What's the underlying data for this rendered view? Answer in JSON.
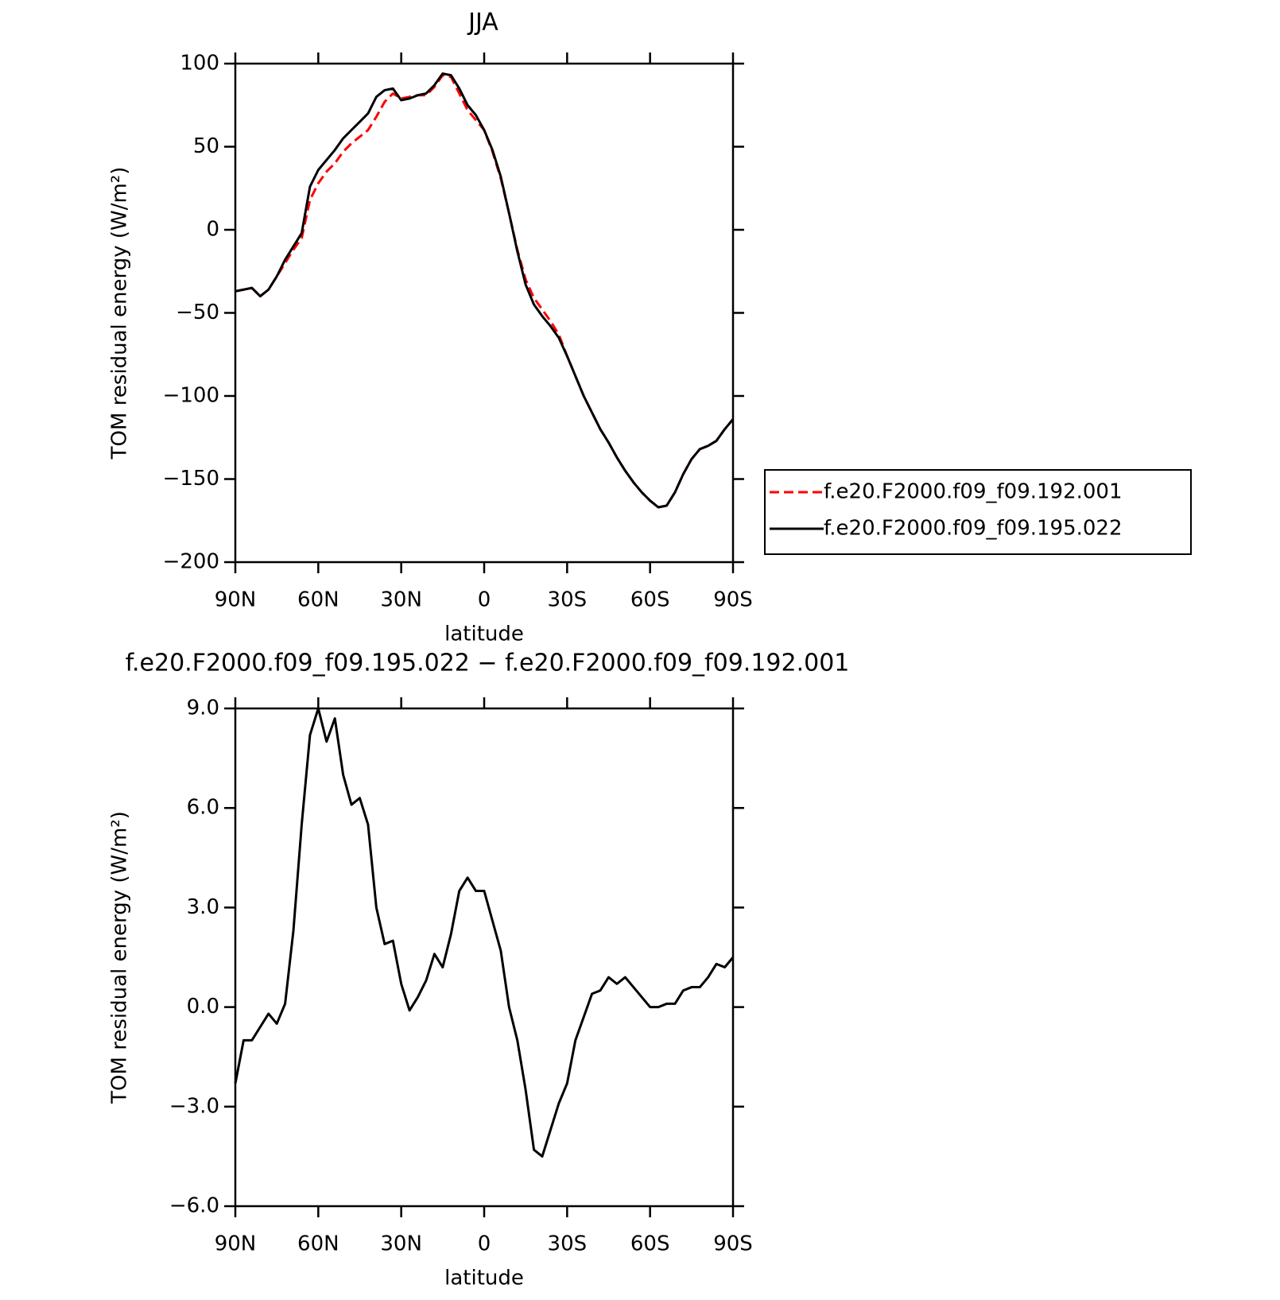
{
  "chart_data": [
    {
      "type": "line",
      "title": "JJA",
      "xlabel": "latitude",
      "ylabel": "TOM residual energy (W/m²)",
      "x": [
        90,
        87,
        84,
        81,
        78,
        75,
        72,
        69,
        66,
        63,
        60,
        57,
        54,
        51,
        48,
        45,
        42,
        39,
        36,
        33,
        30,
        27,
        24,
        21,
        18,
        15,
        12,
        9,
        6,
        3,
        0,
        -3,
        -6,
        -9,
        -12,
        -15,
        -18,
        -21,
        -24,
        -27,
        -30,
        -33,
        -36,
        -39,
        -42,
        -45,
        -48,
        -51,
        -54,
        -57,
        -60,
        -63,
        -66,
        -69,
        -72,
        -75,
        -78,
        -81,
        -84,
        -87,
        -90
      ],
      "series": [
        {
          "name": "f.e20.F2000.f09_f09.192.001",
          "color": "#ff0000",
          "linestyle": "dashed",
          "values": [
            -37,
            -36,
            -35,
            -40,
            -36,
            -28,
            -20,
            -12,
            -5,
            18,
            28,
            35,
            40,
            47,
            52,
            56,
            60,
            68,
            77,
            82,
            79,
            80,
            81,
            81,
            86,
            93,
            92,
            82,
            72,
            66,
            60,
            47,
            31,
            10,
            -12,
            -30,
            -41,
            -48,
            -55,
            -63,
            -76,
            -88,
            -100,
            -110,
            -120,
            -128,
            -137,
            -145,
            -152,
            -158,
            -163,
            -167,
            -166,
            -158,
            -147,
            -138,
            -132,
            -130,
            -127,
            -120,
            -114
          ]
        },
        {
          "name": "f.e20.F2000.f09_f09.195.022",
          "color": "#000000",
          "linestyle": "solid",
          "values": [
            -37,
            -36,
            -35,
            -40,
            -36,
            -28,
            -18,
            -10,
            -2,
            26,
            36,
            42,
            48,
            55,
            60,
            65,
            70,
            80,
            84,
            85,
            78,
            79,
            81,
            82,
            87,
            94,
            93,
            85,
            75,
            69,
            60,
            48,
            32,
            10,
            -13,
            -33,
            -45,
            -52,
            -58,
            -65,
            -76,
            -88,
            -100,
            -110,
            -120,
            -128,
            -137,
            -145,
            -152,
            -158,
            -163,
            -167,
            -166,
            -158,
            -147,
            -138,
            -132,
            -130,
            -127,
            -120,
            -114
          ]
        }
      ],
      "xlim": [
        90,
        -90
      ],
      "xticks": [
        {
          "value": 90,
          "label": "90N"
        },
        {
          "value": 60,
          "label": "60N"
        },
        {
          "value": 30,
          "label": "30N"
        },
        0,
        {
          "value": -30,
          "label": "30S"
        },
        {
          "value": -60,
          "label": "60S"
        },
        {
          "value": -90,
          "label": "90S"
        }
      ],
      "ylim": [
        -200,
        100
      ],
      "yticks": [
        {
          "value": -200,
          "label": "−200"
        },
        {
          "value": -150,
          "label": "−150"
        },
        {
          "value": -100,
          "label": "−100"
        },
        {
          "value": -50,
          "label": "−50"
        },
        0,
        50,
        100
      ],
      "legend": "outside-right"
    },
    {
      "type": "line",
      "title": "f.e20.F2000.f09_f09.195.022 − f.e20.F2000.f09_f09.192.001",
      "xlabel": "latitude",
      "ylabel": "TOM residual energy (W/m²)",
      "x": [
        90,
        87,
        84,
        81,
        78,
        75,
        72,
        69,
        66,
        63,
        60,
        57,
        54,
        51,
        48,
        45,
        42,
        39,
        36,
        33,
        30,
        27,
        24,
        21,
        18,
        15,
        12,
        9,
        6,
        3,
        0,
        -3,
        -6,
        -9,
        -12,
        -15,
        -18,
        -21,
        -24,
        -27,
        -30,
        -33,
        -36,
        -39,
        -42,
        -45,
        -48,
        -51,
        -54,
        -57,
        -60,
        -63,
        -66,
        -69,
        -72,
        -75,
        -78,
        -81,
        -84,
        -87,
        -90
      ],
      "series": [
        {
          "color": "#000000",
          "linestyle": "solid",
          "values": [
            -2.3,
            -1.0,
            -1.0,
            -0.6,
            -0.2,
            -0.5,
            0.1,
            2.3,
            5.5,
            8.2,
            9.0,
            8.0,
            8.7,
            7.0,
            6.1,
            6.3,
            5.5,
            3.0,
            1.9,
            2.0,
            0.7,
            -0.1,
            0.3,
            0.8,
            1.6,
            1.2,
            2.2,
            3.5,
            3.9,
            3.5,
            3.5,
            2.6,
            1.7,
            0.0,
            -1.0,
            -2.5,
            -4.3,
            -4.5,
            -3.7,
            -2.9,
            -2.3,
            -1.0,
            -0.3,
            0.4,
            0.5,
            0.9,
            0.7,
            0.9,
            0.6,
            0.3,
            0.0,
            0.0,
            0.1,
            0.1,
            0.5,
            0.6,
            0.6,
            0.9,
            1.3,
            1.2,
            1.5
          ]
        }
      ],
      "xlim": [
        90,
        -90
      ],
      "xticks": [
        {
          "value": 90,
          "label": "90N"
        },
        {
          "value": 60,
          "label": "60N"
        },
        {
          "value": 30,
          "label": "30N"
        },
        0,
        {
          "value": -30,
          "label": "30S"
        },
        {
          "value": -60,
          "label": "60S"
        },
        {
          "value": -90,
          "label": "90S"
        }
      ],
      "ylim": [
        -6,
        9
      ],
      "yticks": [
        {
          "value": -6,
          "label": "−6.0"
        },
        {
          "value": -3,
          "label": "−3.0"
        },
        {
          "value": 0,
          "label": "0.0"
        },
        {
          "value": 3,
          "label": "3.0"
        },
        {
          "value": 6,
          "label": "6.0"
        },
        {
          "value": 9,
          "label": "9.0"
        }
      ]
    }
  ]
}
